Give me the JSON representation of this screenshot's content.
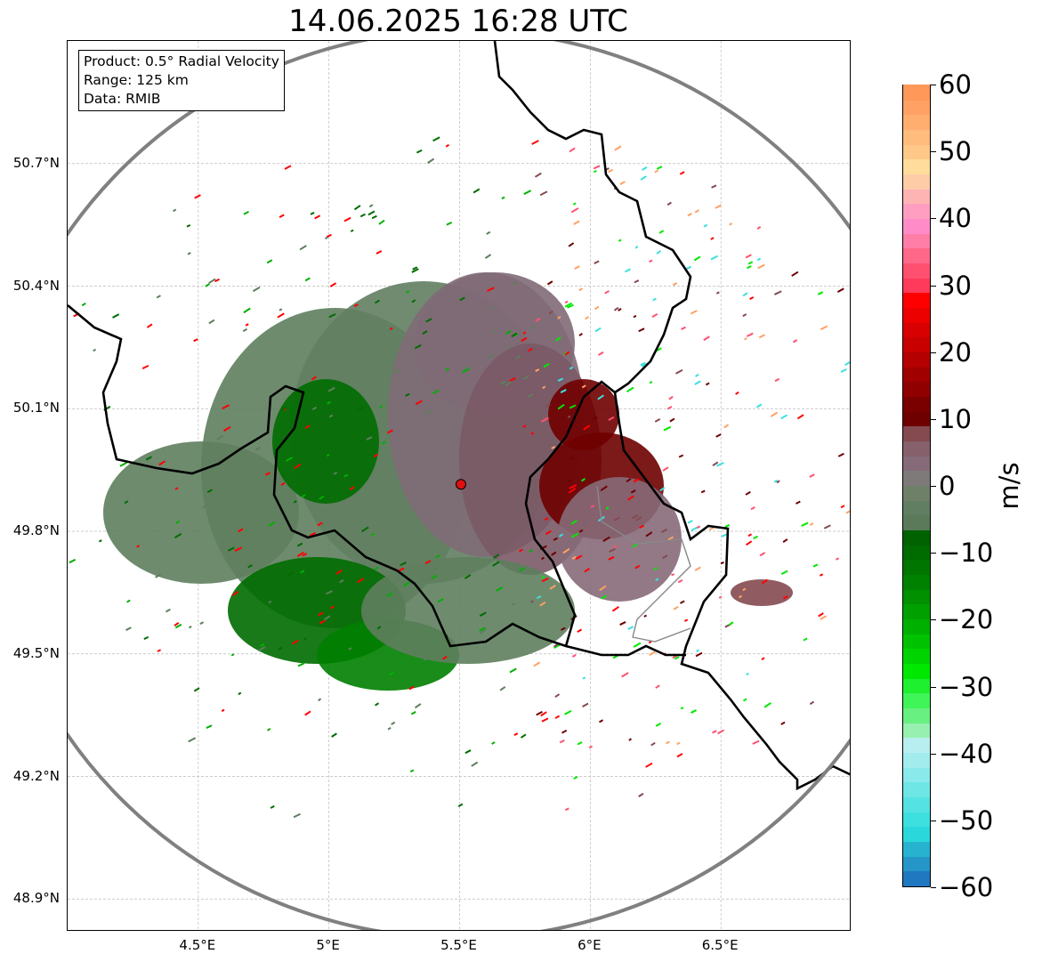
{
  "title": "14.06.2025 16:28 UTC",
  "info": [
    "Product: 0.5° Radial Velocity",
    "Range: 125 km",
    "Data: RMIB"
  ],
  "map": {
    "lon_range": [
      4.0,
      7.0
    ],
    "lat_range": [
      48.82,
      51.0
    ],
    "radar_site": {
      "lon": 5.505,
      "lat": 49.915
    },
    "x_ticks": [
      {
        "value": 4.5,
        "label": "4.5°E"
      },
      {
        "value": 5.0,
        "label": "5°E"
      },
      {
        "value": 5.5,
        "label": "5.5°E"
      },
      {
        "value": 6.0,
        "label": "6°E"
      },
      {
        "value": 6.5,
        "label": "6.5°E"
      }
    ],
    "y_ticks": [
      {
        "value": 50.7,
        "label": "50.7°N"
      },
      {
        "value": 50.4,
        "label": "50.4°N"
      },
      {
        "value": 50.1,
        "label": "50.1°N"
      },
      {
        "value": 49.8,
        "label": "49.8°N"
      },
      {
        "value": 49.5,
        "label": "49.5°N"
      },
      {
        "value": 49.2,
        "label": "49.2°N"
      },
      {
        "value": 48.9,
        "label": "48.9°N"
      }
    ]
  },
  "colorbar": {
    "unit": "m/s",
    "range": [
      -60,
      60
    ],
    "ticks": [
      {
        "value": 60,
        "label": "60"
      },
      {
        "value": 50,
        "label": "50"
      },
      {
        "value": 40,
        "label": "40"
      },
      {
        "value": 30,
        "label": "30"
      },
      {
        "value": 20,
        "label": "20"
      },
      {
        "value": 10,
        "label": "10"
      },
      {
        "value": 0,
        "label": "0"
      },
      {
        "value": -10,
        "label": "−10"
      },
      {
        "value": -20,
        "label": "−20"
      },
      {
        "value": -30,
        "label": "−30"
      },
      {
        "value": -40,
        "label": "−40"
      },
      {
        "value": -50,
        "label": "−50"
      },
      {
        "value": -60,
        "label": "−60"
      }
    ],
    "colors": [
      "#1f78c0",
      "#2596c8",
      "#27b3d0",
      "#2ad8dc",
      "#3ddfdf",
      "#55e2e2",
      "#6fe6e6",
      "#8ae9ea",
      "#a3ecee",
      "#b9eef0",
      "#98f0b0",
      "#68f080",
      "#3ff558",
      "#1ef02f",
      "#00e800",
      "#00d400",
      "#00c200",
      "#00b000",
      "#00a000",
      "#009000",
      "#008200",
      "#007600",
      "#006c00",
      "#006200",
      "#5a7a5a",
      "#627e62",
      "#6e8068",
      "#7f7a7a",
      "#866a78",
      "#86606a",
      "#844a50",
      "#6e0000",
      "#7a0000",
      "#900000",
      "#a00000",
      "#b40000",
      "#c80000",
      "#d80000",
      "#ec0000",
      "#ff0000",
      "#ff3a5a",
      "#ff5070",
      "#ff6888",
      "#ff7ea8",
      "#ff8cc8",
      "#ff9ec0",
      "#ffb4b4",
      "#ffcca8",
      "#ffdc9c",
      "#ffc888",
      "#ffbc7c",
      "#ffae70",
      "#ffa064",
      "#ff9858"
    ]
  }
}
